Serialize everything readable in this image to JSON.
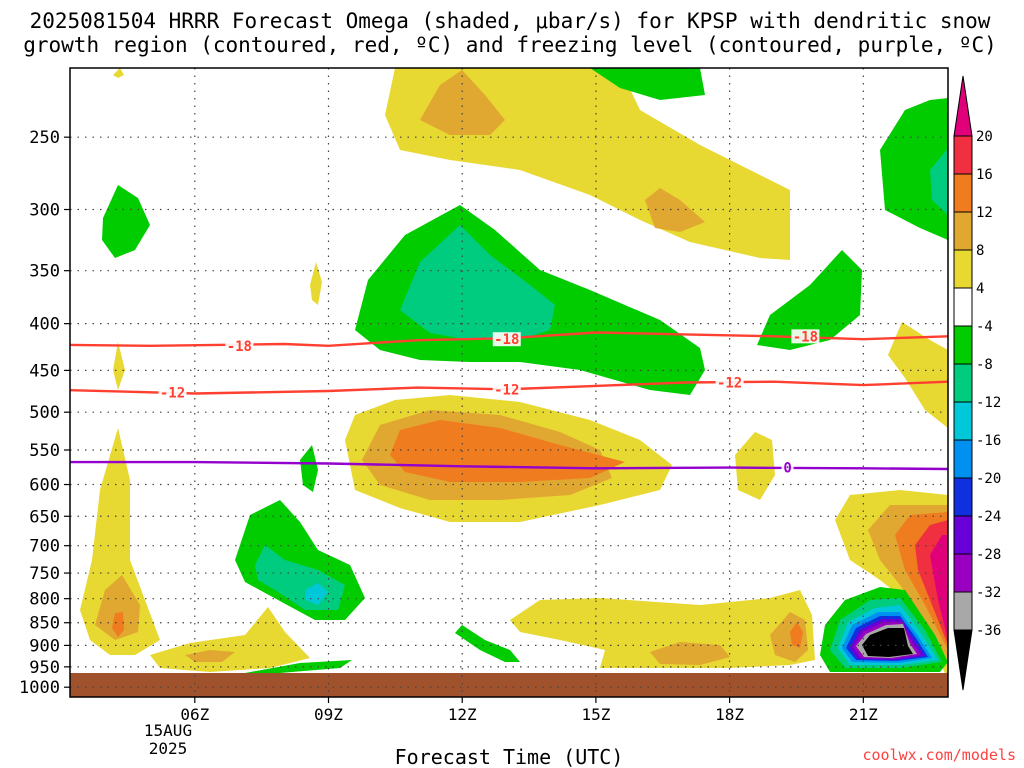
{
  "chart_data": {
    "type": "heatmap",
    "title": "2025081504 HRRR Forecast Omega (shaded, μbar/s) for KPSP with dendritic snow growth region (contoured, red, ºC) and freezing level (contoured, purple, ºC)",
    "title_lines": [
      "2025081504 HRRR Forecast Omega (shaded, μbar/s) for KPSP with dendritic snow",
      "growth region (contoured, red, ºC) and freezing level (contoured, purple, ºC)"
    ],
    "xlabel": "Forecast Time (UTC)",
    "ylabel": "",
    "x_ticks": [
      "06Z",
      "09Z",
      "12Z",
      "15Z",
      "18Z",
      "21Z"
    ],
    "x_date_lines": [
      "15AUG",
      "2025"
    ],
    "y_ticks": [
      250,
      300,
      350,
      400,
      450,
      500,
      550,
      600,
      650,
      700,
      750,
      800,
      850,
      900,
      950,
      1000
    ],
    "y_scale": "log pressure (hPa)",
    "xlim_hours": [
      3.2,
      22.9
    ],
    "ylim_hpa": [
      210,
      1025
    ],
    "surface_pressure_hpa": 990,
    "grid": true,
    "colorbar": {
      "labels": [
        20,
        16,
        12,
        8,
        4,
        -4,
        -8,
        -12,
        -16,
        -20,
        -24,
        -28,
        -32,
        -36
      ],
      "colors": [
        "#e0007a",
        "#f03040",
        "#f07c20",
        "#e0a830",
        "#e8d832",
        "#ffffff",
        "#00cc00",
        "#00cc80",
        "#00c8d8",
        "#0090f0",
        "#1030e0",
        "#6a00d8",
        "#9a00c0",
        "#a8a8a8",
        "#000000"
      ],
      "units": "μbar/s"
    },
    "contours": [
      {
        "kind": "dendritic",
        "color": "#ff4030",
        "level": -18,
        "label": "-18",
        "points": [
          [
            3.2,
            422
          ],
          [
            5,
            423
          ],
          [
            8,
            421
          ],
          [
            9,
            423
          ],
          [
            11,
            417
          ],
          [
            13,
            415
          ],
          [
            15,
            409
          ],
          [
            17,
            411
          ],
          [
            19,
            413
          ],
          [
            21,
            416
          ],
          [
            22.9,
            413
          ]
        ],
        "labels_at": [
          [
            7,
            423
          ],
          [
            13,
            416
          ],
          [
            19.7,
            413
          ]
        ]
      },
      {
        "kind": "dendritic",
        "color": "#ff4030",
        "level": -12,
        "label": "-12",
        "points": [
          [
            3.2,
            473
          ],
          [
            6,
            477
          ],
          [
            9,
            474
          ],
          [
            11,
            470
          ],
          [
            13,
            472
          ],
          [
            15,
            468
          ],
          [
            17,
            464
          ],
          [
            19,
            463
          ],
          [
            21,
            467
          ],
          [
            22.9,
            463
          ]
        ],
        "labels_at": [
          [
            5.5,
            476
          ],
          [
            13,
            472
          ],
          [
            18,
            464
          ]
        ]
      },
      {
        "kind": "freezing",
        "color": "#9400cc",
        "level": 0,
        "label": "0",
        "points": [
          [
            3.2,
            567
          ],
          [
            6,
            567
          ],
          [
            9,
            569
          ],
          [
            12,
            573
          ],
          [
            15,
            576
          ],
          [
            18,
            575
          ],
          [
            21,
            576
          ],
          [
            22.9,
            577
          ]
        ],
        "labels_at": [
          [
            19.3,
            575
          ]
        ]
      }
    ],
    "bottom_right_note": "coolwx.com/models"
  }
}
